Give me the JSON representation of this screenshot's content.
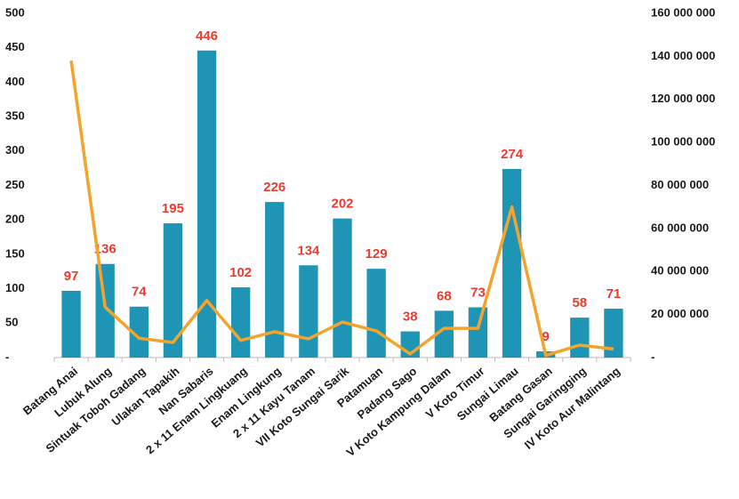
{
  "chart_data": {
    "type": "bar",
    "categories": [
      "Batang Anai",
      "Lubuk Alung",
      "Sintuak Toboh Gadang",
      "Ulakan Tapakih",
      "Nan Sabaris",
      "2 x 11 Enam Lingkuang",
      "Enam Lingkung",
      "2 x 11 Kayu Tanam",
      "VII Koto Sungai Sarik",
      "Patamuan",
      "Padang Sago",
      "V Koto Kampung Dalam",
      "V Koto Timur",
      "Sungai Limau",
      "Batang  Gasan",
      "Sungai Garingging",
      "IV Koto Aur Malintang"
    ],
    "series": [
      {
        "type": "bar",
        "color": "#1f95b5",
        "values": [
          97,
          136,
          74,
          195,
          446,
          102,
          226,
          134,
          202,
          129,
          38,
          68,
          73,
          274,
          9,
          58,
          71
        ]
      },
      {
        "type": "line",
        "axis": "y2",
        "color": "#f4a42c",
        "values": [
          138000000,
          23500000,
          9000000,
          7000000,
          26500000,
          8000000,
          12000000,
          8700000,
          16500000,
          12400000,
          1700000,
          13600000,
          13600000,
          70000000,
          1000000,
          5800000,
          4000000
        ]
      }
    ],
    "ylim": [
      0,
      500
    ],
    "yticks": [
      {
        "value": 0,
        "label": "-"
      },
      50,
      100,
      150,
      200,
      250,
      300,
      350,
      400,
      450,
      500
    ],
    "y2lim": [
      0,
      160000000
    ],
    "y2ticks": [
      {
        "value": 0,
        "label": "-"
      },
      {
        "value": 20000000,
        "label": "20 000 000"
      },
      {
        "value": 40000000,
        "label": "40 000 000"
      },
      {
        "value": 60000000,
        "label": "60 000 000"
      },
      {
        "value": 80000000,
        "label": "80 000 000"
      },
      {
        "value": 100000000,
        "label": "100 000 000"
      },
      {
        "value": 120000000,
        "label": "120 000 000"
      },
      {
        "value": 140000000,
        "label": "140 000 000"
      },
      {
        "value": 160000000,
        "label": "160 000 000"
      }
    ],
    "data_labels": true,
    "grid": false
  }
}
